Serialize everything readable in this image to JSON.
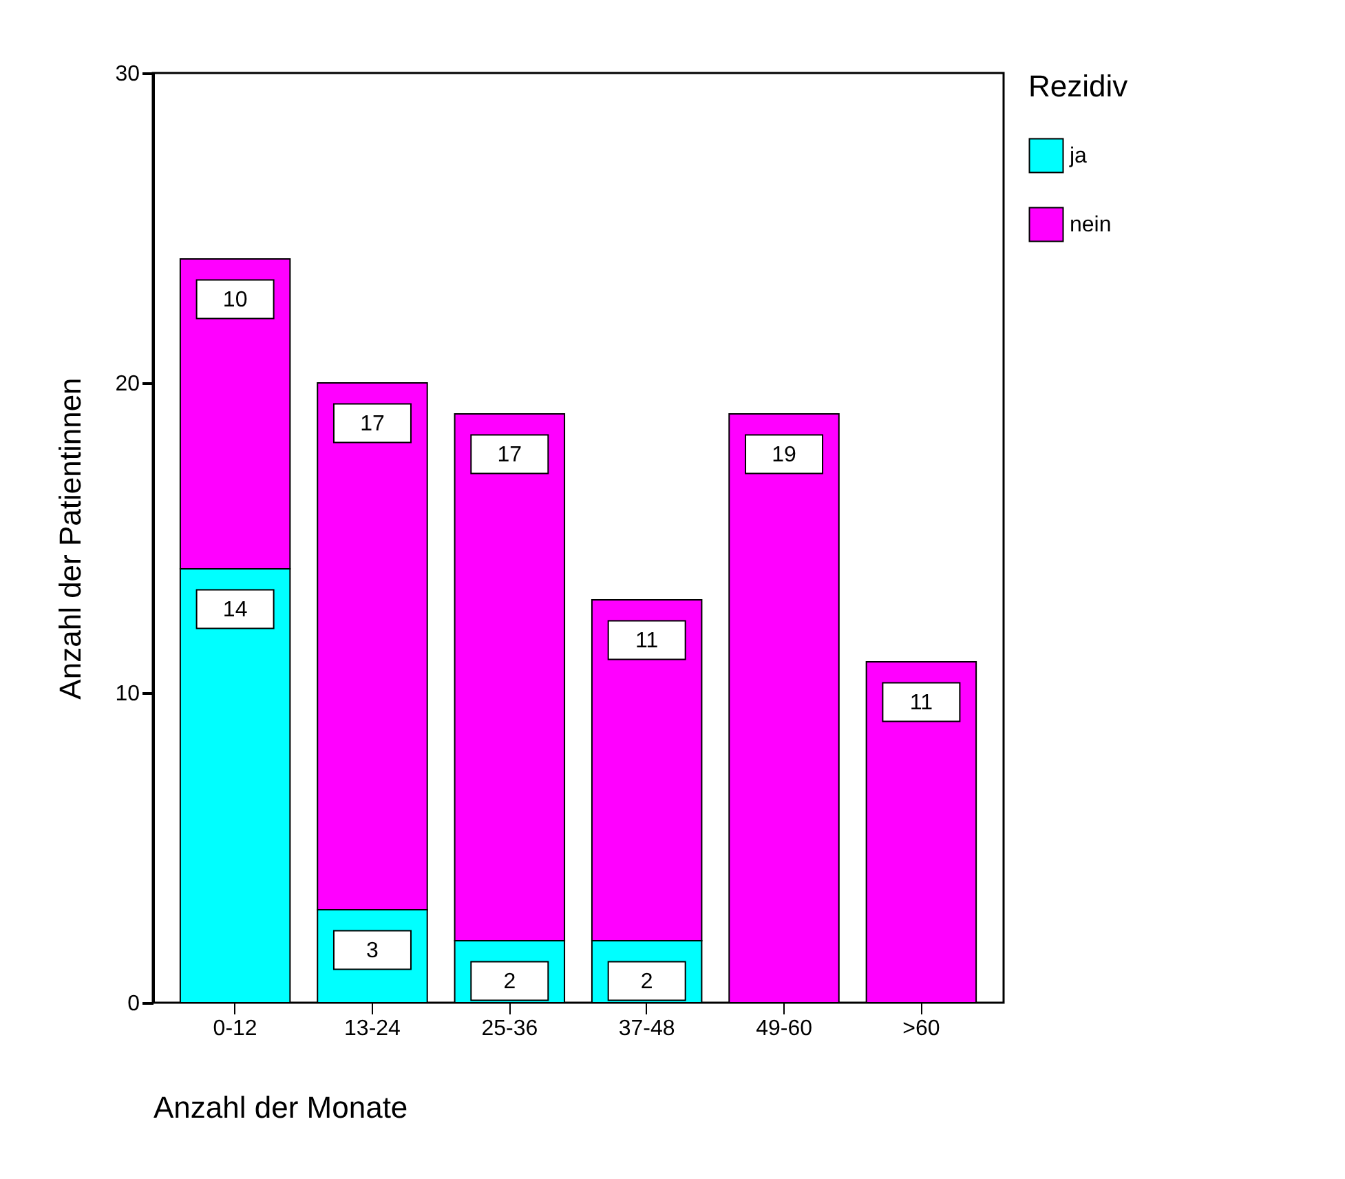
{
  "chart_data": {
    "type": "bar",
    "stacked": true,
    "xlabel": "Anzahl der Monate",
    "ylabel": "Anzahl der Patientinnen",
    "legend_title": "Rezidiv",
    "categories": [
      "0-12",
      "13-24",
      "25-36",
      "37-48",
      "49-60",
      ">60"
    ],
    "series": [
      {
        "name": "ja",
        "color": "#00ffff",
        "values": [
          14,
          3,
          2,
          2,
          null,
          null
        ]
      },
      {
        "name": "nein",
        "color": "#ff00ff",
        "values": [
          10,
          17,
          17,
          11,
          19,
          11
        ]
      }
    ],
    "ylim": [
      0,
      30
    ],
    "yticks": [
      0,
      10,
      20,
      30
    ],
    "data_labels": true,
    "legend": "right",
    "grid": false
  }
}
